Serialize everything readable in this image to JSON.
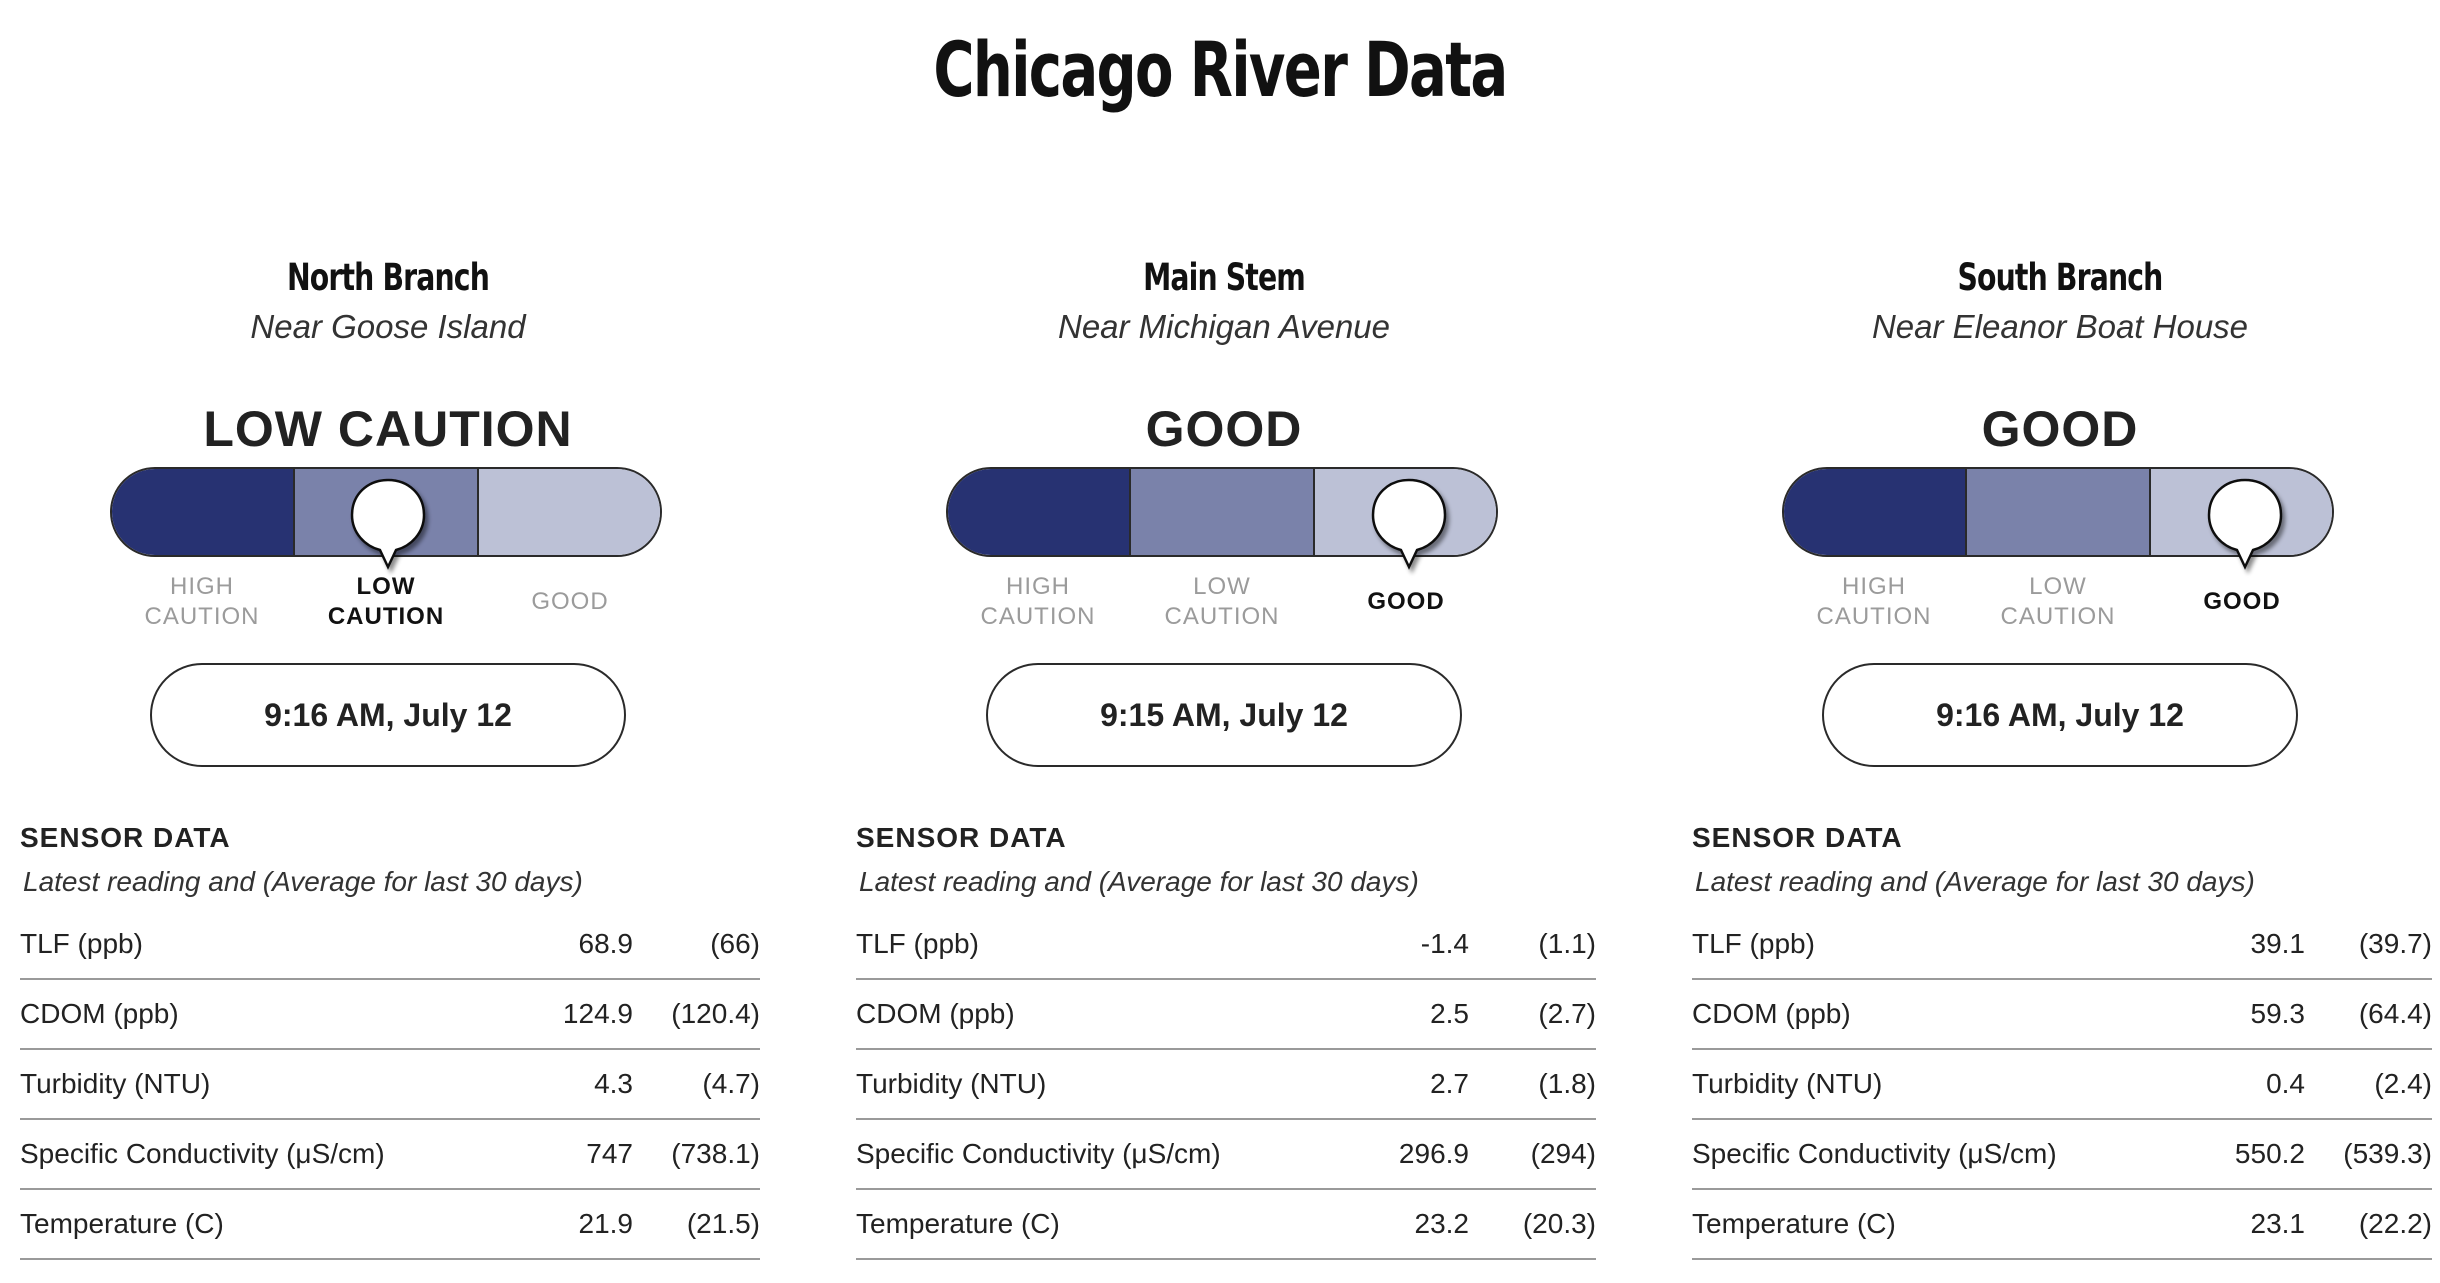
{
  "page": {
    "title": "Chicago River Data"
  },
  "colors": {
    "high_caution": "#273272",
    "low_caution": "#7a82aa",
    "good": "#bcc1d6",
    "border": "#2a2a2a",
    "inactive_label": "#9b9b9b"
  },
  "gauge_labels": {
    "high_caution": "HIGH\nCAUTION",
    "low_caution": "LOW\nCAUTION",
    "good": "GOOD"
  },
  "sensor_section": {
    "title": "SENSOR DATA",
    "subtitle": "Latest reading and (Average for last 30 days)"
  },
  "stations": [
    {
      "name": "North Branch",
      "location": "Near Goose Island",
      "status": "LOW CAUTION",
      "status_level": "low_caution",
      "time": "9:16 AM, July 12",
      "sensors": [
        {
          "metric": "TLF (ppb)",
          "latest": "68.9",
          "avg": "(66)"
        },
        {
          "metric": "CDOM (ppb)",
          "latest": "124.9",
          "avg": "(120.4)"
        },
        {
          "metric": "Turbidity (NTU)",
          "latest": "4.3",
          "avg": "(4.7)"
        },
        {
          "metric": "Specific Conductivity (μS/cm)",
          "latest": "747",
          "avg": "(738.1)"
        },
        {
          "metric": "Temperature (C)",
          "latest": "21.9",
          "avg": "(21.5)"
        }
      ]
    },
    {
      "name": "Main Stem",
      "location": "Near Michigan Avenue",
      "status": "GOOD",
      "status_level": "good",
      "time": "9:15 AM, July 12",
      "sensors": [
        {
          "metric": "TLF (ppb)",
          "latest": "-1.4",
          "avg": "(1.1)"
        },
        {
          "metric": "CDOM (ppb)",
          "latest": "2.5",
          "avg": "(2.7)"
        },
        {
          "metric": "Turbidity (NTU)",
          "latest": "2.7",
          "avg": "(1.8)"
        },
        {
          "metric": "Specific Conductivity (μS/cm)",
          "latest": "296.9",
          "avg": "(294)"
        },
        {
          "metric": "Temperature (C)",
          "latest": "23.2",
          "avg": "(20.3)"
        }
      ]
    },
    {
      "name": "South Branch",
      "location": "Near Eleanor Boat House",
      "status": "GOOD",
      "status_level": "good",
      "time": "9:16 AM, July 12",
      "sensors": [
        {
          "metric": "TLF (ppb)",
          "latest": "39.1",
          "avg": "(39.7)"
        },
        {
          "metric": "CDOM (ppb)",
          "latest": "59.3",
          "avg": "(64.4)"
        },
        {
          "metric": "Turbidity (NTU)",
          "latest": "0.4",
          "avg": "(2.4)"
        },
        {
          "metric": "Specific Conductivity (μS/cm)",
          "latest": "550.2",
          "avg": "(539.3)"
        },
        {
          "metric": "Temperature (C)",
          "latest": "23.1",
          "avg": "(22.2)"
        }
      ]
    }
  ]
}
